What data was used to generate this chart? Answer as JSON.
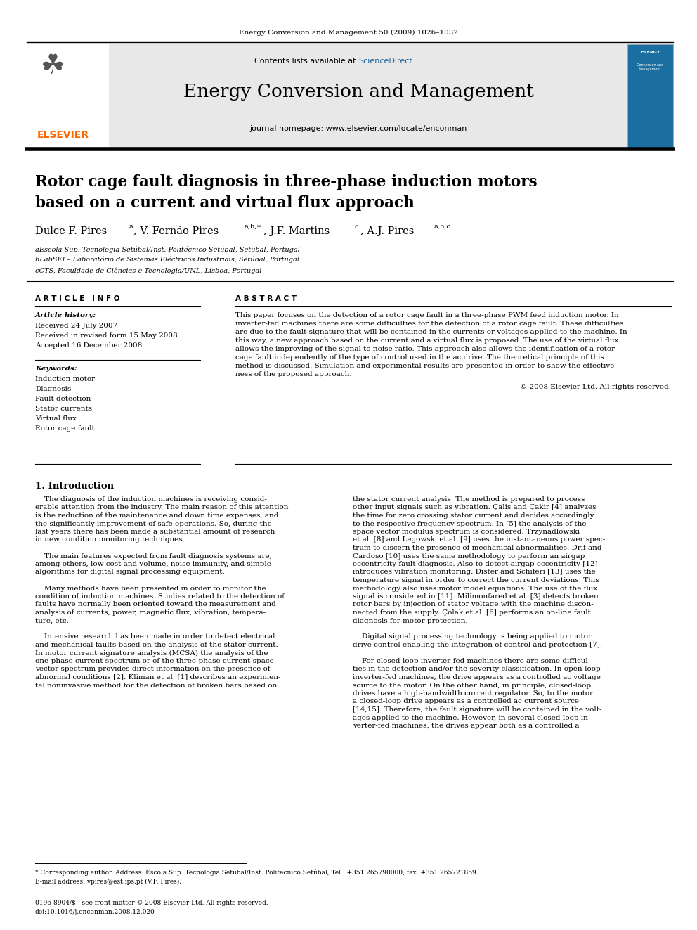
{
  "page_width": 9.92,
  "page_height": 13.23,
  "background_color": "#ffffff",
  "journal_ref": "Energy Conversion and Management 50 (2009) 1026–1032",
  "header_bg": "#e8e8e8",
  "header_sd": "ScienceDirect",
  "header_journal": "Energy Conversion and Management",
  "header_homepage": "journal homepage: www.elsevier.com/locate/enconman",
  "elsevier_color": "#ff6600",
  "sd_color": "#1a6496",
  "title_line1": "Rotor cage fault diagnosis in three-phase induction motors",
  "title_line2": "based on a current and virtual flux approach",
  "affil_a": "aEscola Sup. Tecnologia Setúbal/Inst. Politécnico Setúbal, Setúbal, Portugal",
  "affil_b": "bLabSEI – Laboratório de Sistemas Eléctricos Industriais, Setúbal, Portugal",
  "affil_c": "cCTS, Faculdade de Ciências e Tecnologia/UNL, Lisboa, Portugal",
  "article_info_title": "A R T I C L E   I N F O",
  "article_history_title": "Article history:",
  "received1": "Received 24 July 2007",
  "received2": "Received in revised form 15 May 2008",
  "accepted": "Accepted 16 December 2008",
  "keywords_title": "Keywords:",
  "keywords": [
    "Induction motor",
    "Diagnosis",
    "Fault detection",
    "Stator currents",
    "Virtual flux",
    "Rotor cage fault"
  ],
  "abstract_title": "A B S T R A C T",
  "copyright": "© 2008 Elsevier Ltd. All rights reserved.",
  "section1_title": "1. Introduction",
  "footnote_line1": "* Corresponding author. Address: Escola Sup. Tecnologia Setúbal/Inst. Politécnico Setúbal, Tel.: +351 265790000; fax: +351 265721869.",
  "footnote_line2": "E-mail address: vpires@est.ips.pt (V.F. Pires).",
  "doi_line1": "0196-8904/$ - see front matter © 2008 Elsevier Ltd. All rights reserved.",
  "doi_line2": "doi:10.1016/j.enconman.2008.12.020"
}
